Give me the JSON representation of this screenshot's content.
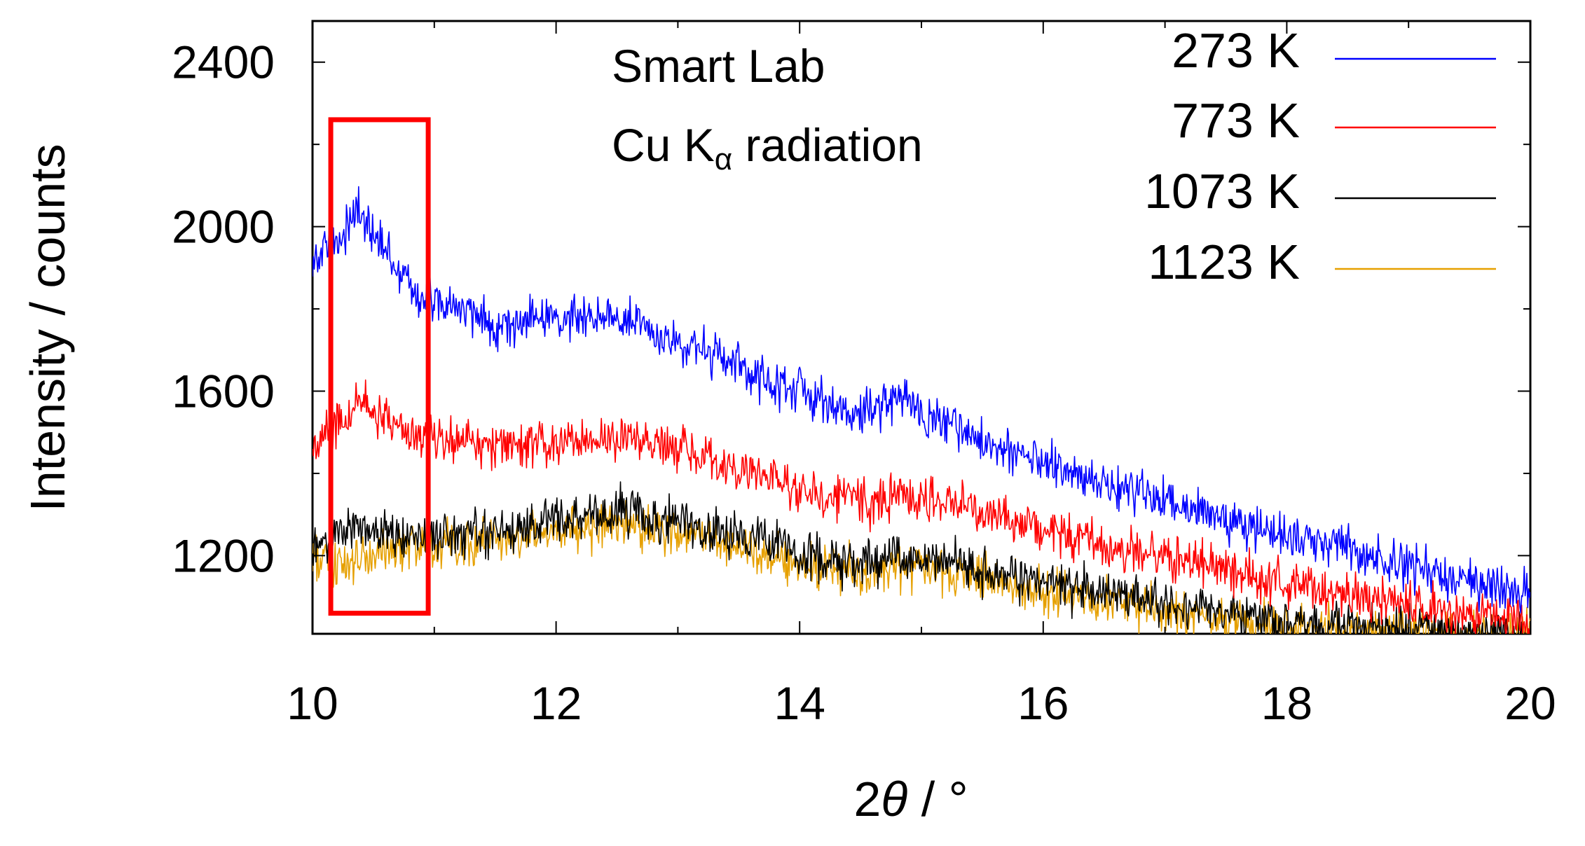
{
  "chart_data": {
    "type": "line",
    "title": "",
    "xlabel": "2θ / °",
    "xlabel_parts": {
      "prefix": "2",
      "theta": "θ",
      "suffix": " / °"
    },
    "ylabel": "Intensity / counts",
    "xlim": [
      10,
      20
    ],
    "ylim": [
      1010,
      2500
    ],
    "x_ticks": [
      "10",
      "12",
      "14",
      "16",
      "18",
      "20"
    ],
    "y_ticks": [
      "1200",
      "1600",
      "2000",
      "2400"
    ],
    "annotation": {
      "line1": "Smart Lab",
      "line2_prefix": "Cu K",
      "line2_sub": "α",
      "line2_suffix": " radiation"
    },
    "highlight_box": {
      "x_range": [
        10.15,
        10.95
      ],
      "y_range": [
        1060,
        2260
      ],
      "color": "#ff0000"
    },
    "legend_position": "top-right",
    "series": [
      {
        "name": "273 K",
        "color": "#0000ff",
        "x": [
          10.0,
          10.2,
          10.35,
          10.5,
          10.7,
          10.9,
          11.2,
          11.5,
          12.0,
          12.4,
          12.8,
          13.2,
          13.6,
          14.0,
          14.4,
          14.8,
          15.2,
          15.6,
          16.0,
          16.4,
          16.8,
          17.2,
          17.6,
          18.0,
          18.4,
          18.8,
          19.2,
          19.6,
          20.0
        ],
        "values": [
          1920,
          1960,
          2040,
          1980,
          1900,
          1820,
          1800,
          1760,
          1780,
          1790,
          1740,
          1700,
          1640,
          1600,
          1540,
          1580,
          1520,
          1470,
          1420,
          1380,
          1350,
          1320,
          1280,
          1250,
          1220,
          1190,
          1160,
          1130,
          1110
        ]
      },
      {
        "name": "773 K",
        "color": "#ff0000",
        "x": [
          10.0,
          10.2,
          10.4,
          10.6,
          10.8,
          11.0,
          11.4,
          11.8,
          12.2,
          12.6,
          13.0,
          13.4,
          13.8,
          14.2,
          14.6,
          15.0,
          15.4,
          15.8,
          16.2,
          16.6,
          17.0,
          17.4,
          17.8,
          18.2,
          18.6,
          19.0,
          19.4,
          19.8,
          20.0
        ],
        "values": [
          1460,
          1520,
          1570,
          1540,
          1500,
          1490,
          1470,
          1470,
          1480,
          1480,
          1450,
          1420,
          1380,
          1340,
          1330,
          1340,
          1320,
          1280,
          1250,
          1220,
          1200,
          1170,
          1150,
          1120,
          1100,
          1080,
          1060,
          1050,
          1040
        ]
      },
      {
        "name": "1073 K",
        "color": "#000000",
        "x": [
          10.0,
          10.3,
          10.6,
          10.9,
          11.3,
          11.7,
          12.1,
          12.5,
          12.9,
          13.3,
          13.7,
          14.1,
          14.5,
          14.9,
          15.3,
          15.7,
          16.1,
          16.5,
          16.9,
          17.3,
          17.7,
          18.1,
          18.5,
          18.9,
          19.3,
          19.7,
          20.0
        ],
        "values": [
          1220,
          1270,
          1250,
          1240,
          1250,
          1270,
          1290,
          1310,
          1290,
          1260,
          1230,
          1200,
          1180,
          1200,
          1180,
          1150,
          1130,
          1110,
          1090,
          1070,
          1050,
          1040,
          1030,
          1020,
          1015,
          1012,
          1010
        ]
      },
      {
        "name": "1123 K",
        "color": "#e6a000",
        "x": [
          10.0,
          10.3,
          10.6,
          10.9,
          11.3,
          11.7,
          12.1,
          12.5,
          12.9,
          13.3,
          13.7,
          14.1,
          14.5,
          14.9,
          15.3,
          15.7,
          16.1,
          16.5,
          16.9,
          17.3,
          17.7,
          18.1,
          18.5,
          18.9,
          19.3,
          19.7,
          20.0
        ],
        "values": [
          1190,
          1170,
          1210,
          1220,
          1230,
          1250,
          1270,
          1280,
          1260,
          1230,
          1200,
          1170,
          1160,
          1180,
          1160,
          1130,
          1110,
          1090,
          1070,
          1050,
          1040,
          1030,
          1020,
          1015,
          1012,
          1010,
          1010
        ]
      }
    ]
  }
}
